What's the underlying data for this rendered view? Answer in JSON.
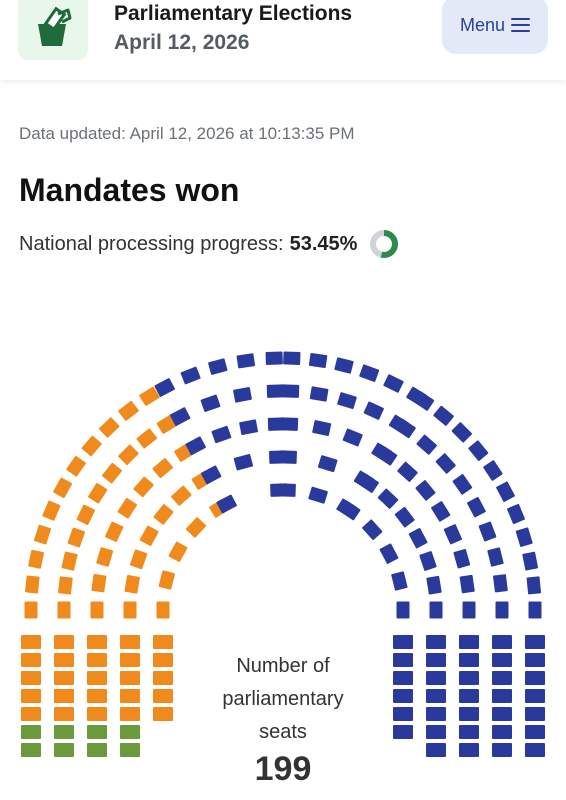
{
  "header": {
    "title": "Parliamentary Elections",
    "date": "April 12, 2026",
    "logo_icon": "ballot-box-icon",
    "menu_label": "Menu",
    "menu_icon": "hamburger-icon"
  },
  "status": {
    "updated": "Data updated: April 12, 2026 at 10:13:35 PM"
  },
  "mandates": {
    "title": "Mandates won",
    "progress_label": "National processing progress:",
    "progress_value": "53.45%",
    "progress_fraction": 0.5345,
    "total_label": "Number of parliamentary seats",
    "total_seats": "199"
  },
  "colors": {
    "orange": "#f08a1c",
    "green": "#6a9a3c",
    "blue": "#2a3a9c",
    "progress_ring": "#2e8b4c",
    "progress_track": "#d0d4d8",
    "brand_green": "#1f6b3a"
  }
}
